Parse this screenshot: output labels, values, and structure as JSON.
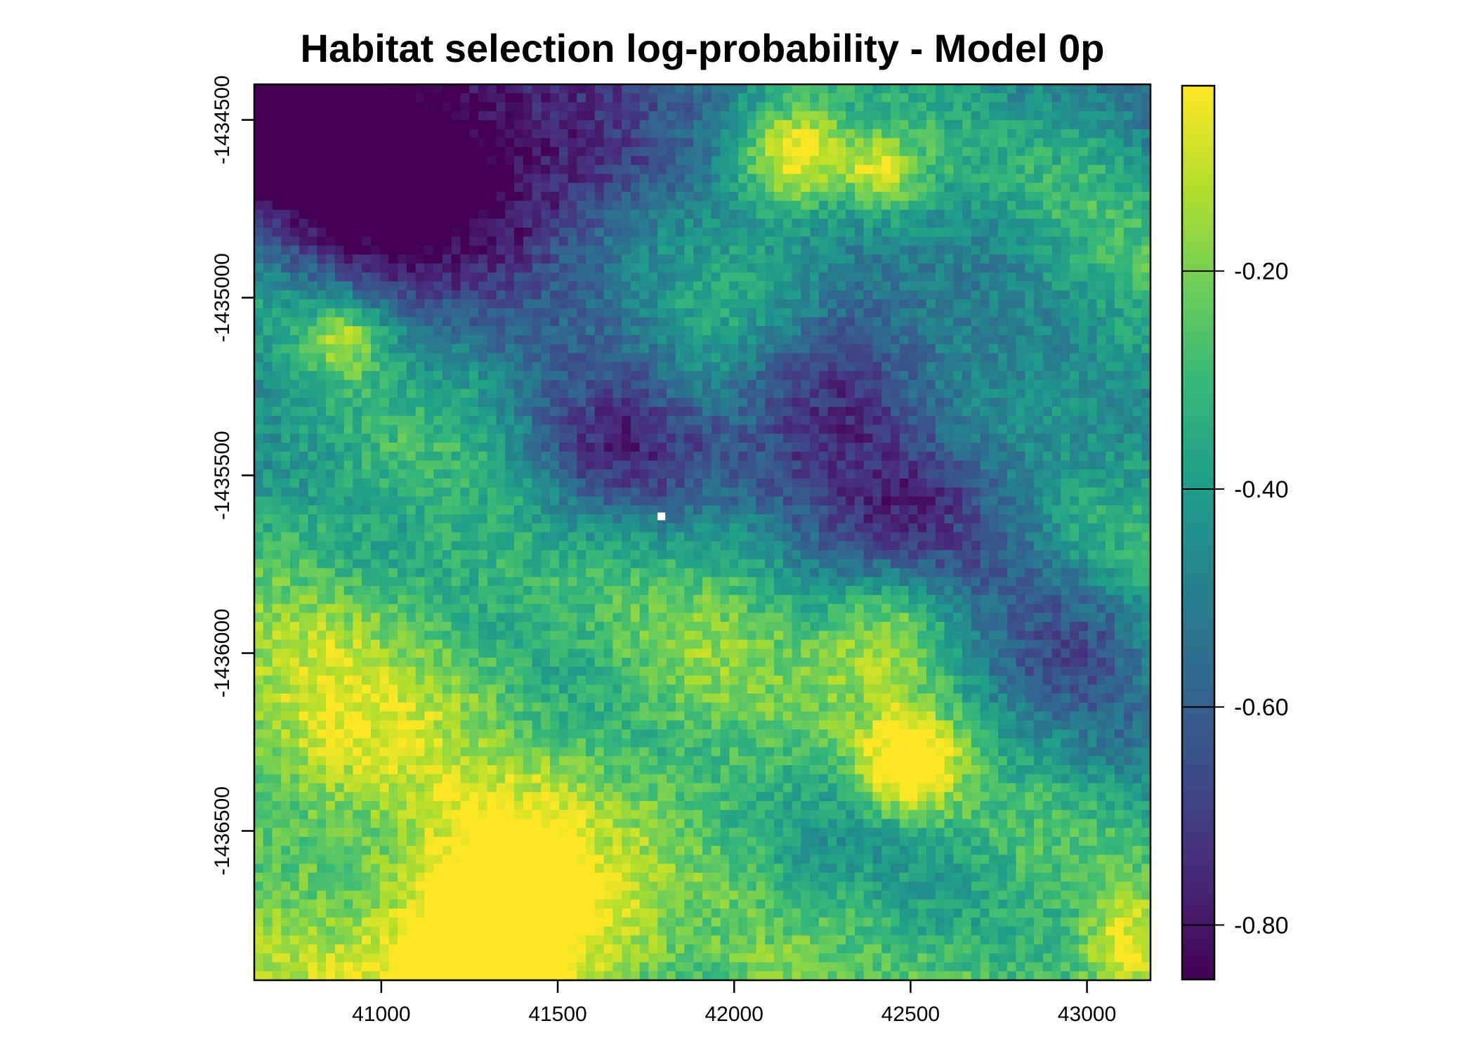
{
  "chart_data": {
    "type": "heatmap",
    "title": "Habitat selection log-probability - Model 0p",
    "xlabel": "",
    "ylabel": "",
    "xlim": [
      40640,
      43180
    ],
    "ylim": [
      -1436920,
      -1434400
    ],
    "x_ticks": [
      41000,
      41500,
      42000,
      42500,
      43000
    ],
    "x_tick_labels": [
      "41000",
      "41500",
      "42000",
      "42500",
      "43000"
    ],
    "y_ticks": [
      -1434500,
      -1435000,
      -1435500,
      -1436000,
      -1436500
    ],
    "y_tick_labels": [
      "-1434500",
      "-1435000",
      "-1435500",
      "-1436000",
      "-1436500"
    ],
    "colorbar": {
      "range": [
        -0.85,
        -0.03
      ],
      "ticks": [
        -0.2,
        -0.4,
        -0.6,
        -0.8
      ],
      "tick_labels": [
        "-0.20",
        "-0.40",
        "-0.60",
        "-0.80"
      ],
      "palette": [
        "#440154",
        "#482878",
        "#3e4a89",
        "#31688e",
        "#26828e",
        "#1f9e89",
        "#35b779",
        "#6ece58",
        "#b5de2b",
        "#fde725"
      ],
      "placement": "right"
    },
    "grid": false
  }
}
